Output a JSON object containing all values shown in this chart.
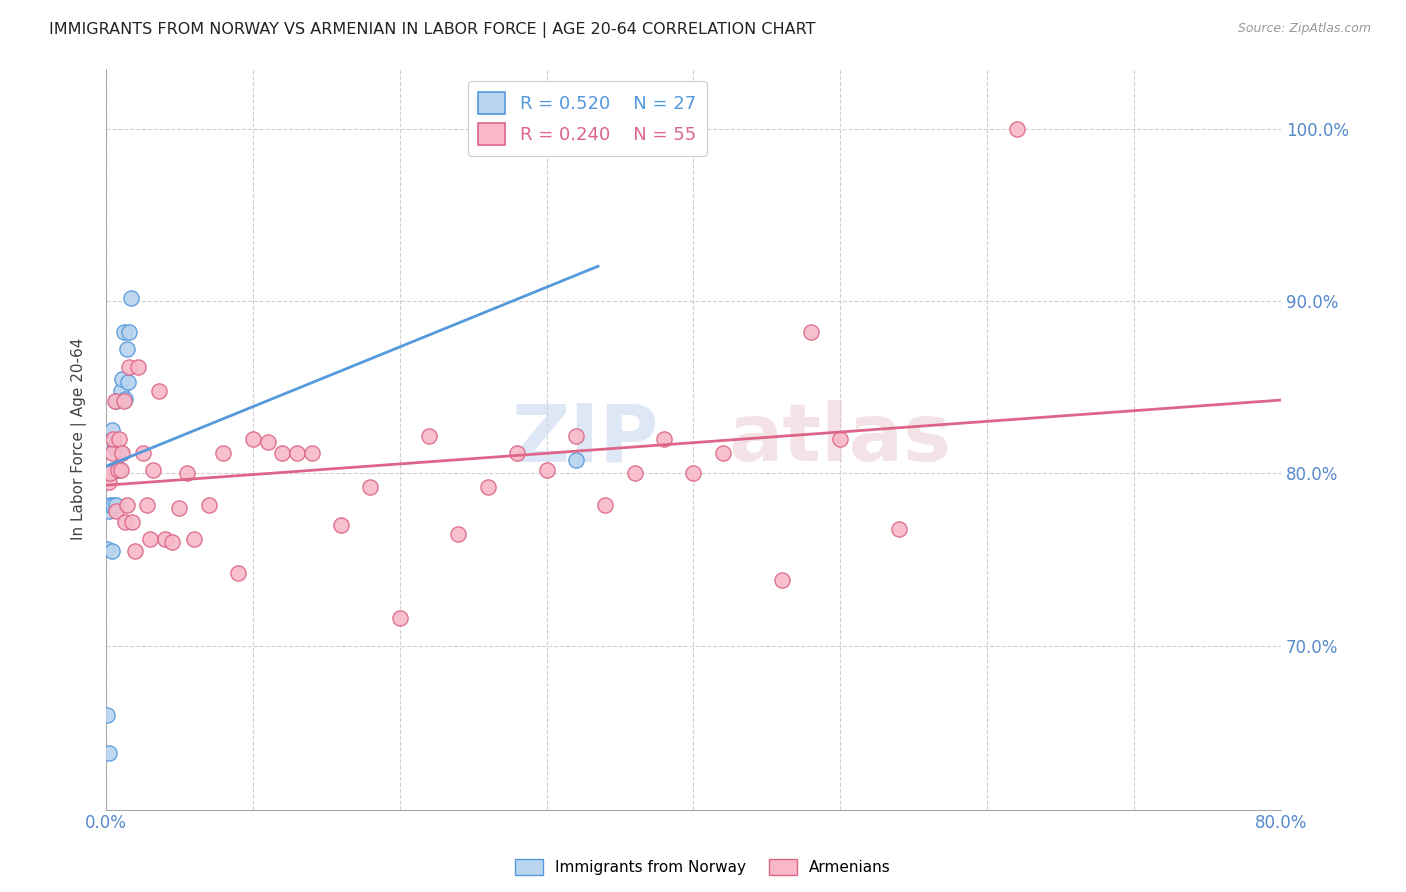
{
  "title": "IMMIGRANTS FROM NORWAY VS ARMENIAN IN LABOR FORCE | AGE 20-64 CORRELATION CHART",
  "source": "Source: ZipAtlas.com",
  "ylabel": "In Labor Force | Age 20-64",
  "right_yticks": [
    0.7,
    0.8,
    0.9,
    1.0
  ],
  "right_yticklabels": [
    "70.0%",
    "80.0%",
    "90.0%",
    "100.0%"
  ],
  "norway_R": 0.52,
  "norway_N": 27,
  "armenian_R": 0.24,
  "armenian_N": 55,
  "norway_color": "#b8d4ee",
  "armenian_color": "#f8b8c8",
  "norway_line_color": "#5599dd",
  "armenian_line_color": "#dd6688",
  "watermark_zip": "ZIP",
  "watermark_atlas": "atlas",
  "norway_x": [
    0.001,
    0.001,
    0.002,
    0.002,
    0.003,
    0.003,
    0.003,
    0.004,
    0.004,
    0.005,
    0.005,
    0.006,
    0.007,
    0.007,
    0.008,
    0.009,
    0.01,
    0.01,
    0.011,
    0.012,
    0.013,
    0.014,
    0.015,
    0.016,
    0.017,
    0.32,
    0.33
  ],
  "norway_y": [
    0.66,
    0.756,
    0.638,
    0.778,
    0.782,
    0.8,
    0.817,
    0.755,
    0.825,
    0.782,
    0.802,
    0.815,
    0.782,
    0.842,
    0.803,
    0.802,
    0.812,
    0.848,
    0.855,
    0.882,
    0.843,
    0.872,
    0.853,
    0.882,
    0.902,
    0.808,
    1.005
  ],
  "armenian_x": [
    0.001,
    0.002,
    0.003,
    0.004,
    0.005,
    0.006,
    0.007,
    0.008,
    0.009,
    0.01,
    0.011,
    0.012,
    0.013,
    0.014,
    0.016,
    0.018,
    0.02,
    0.022,
    0.025,
    0.028,
    0.03,
    0.032,
    0.036,
    0.04,
    0.045,
    0.05,
    0.055,
    0.06,
    0.07,
    0.08,
    0.09,
    0.1,
    0.11,
    0.12,
    0.13,
    0.14,
    0.16,
    0.18,
    0.2,
    0.22,
    0.24,
    0.26,
    0.28,
    0.3,
    0.32,
    0.34,
    0.36,
    0.38,
    0.4,
    0.42,
    0.46,
    0.48,
    0.5,
    0.54,
    0.62
  ],
  "armenian_y": [
    0.8,
    0.795,
    0.8,
    0.812,
    0.82,
    0.842,
    0.778,
    0.802,
    0.82,
    0.802,
    0.812,
    0.842,
    0.772,
    0.782,
    0.862,
    0.772,
    0.755,
    0.862,
    0.812,
    0.782,
    0.762,
    0.802,
    0.848,
    0.762,
    0.76,
    0.78,
    0.8,
    0.762,
    0.782,
    0.812,
    0.742,
    0.82,
    0.818,
    0.812,
    0.812,
    0.812,
    0.77,
    0.792,
    0.716,
    0.822,
    0.765,
    0.792,
    0.812,
    0.802,
    0.822,
    0.782,
    0.8,
    0.82,
    0.8,
    0.812,
    0.738,
    0.882,
    0.82,
    0.768,
    1.0
  ],
  "xmin": 0.0,
  "xmax": 0.8,
  "ymin": 0.605,
  "ymax": 1.035,
  "norway_trend_x": [
    0.0,
    0.335
  ],
  "armenian_trend_x": [
    0.0,
    0.8
  ]
}
